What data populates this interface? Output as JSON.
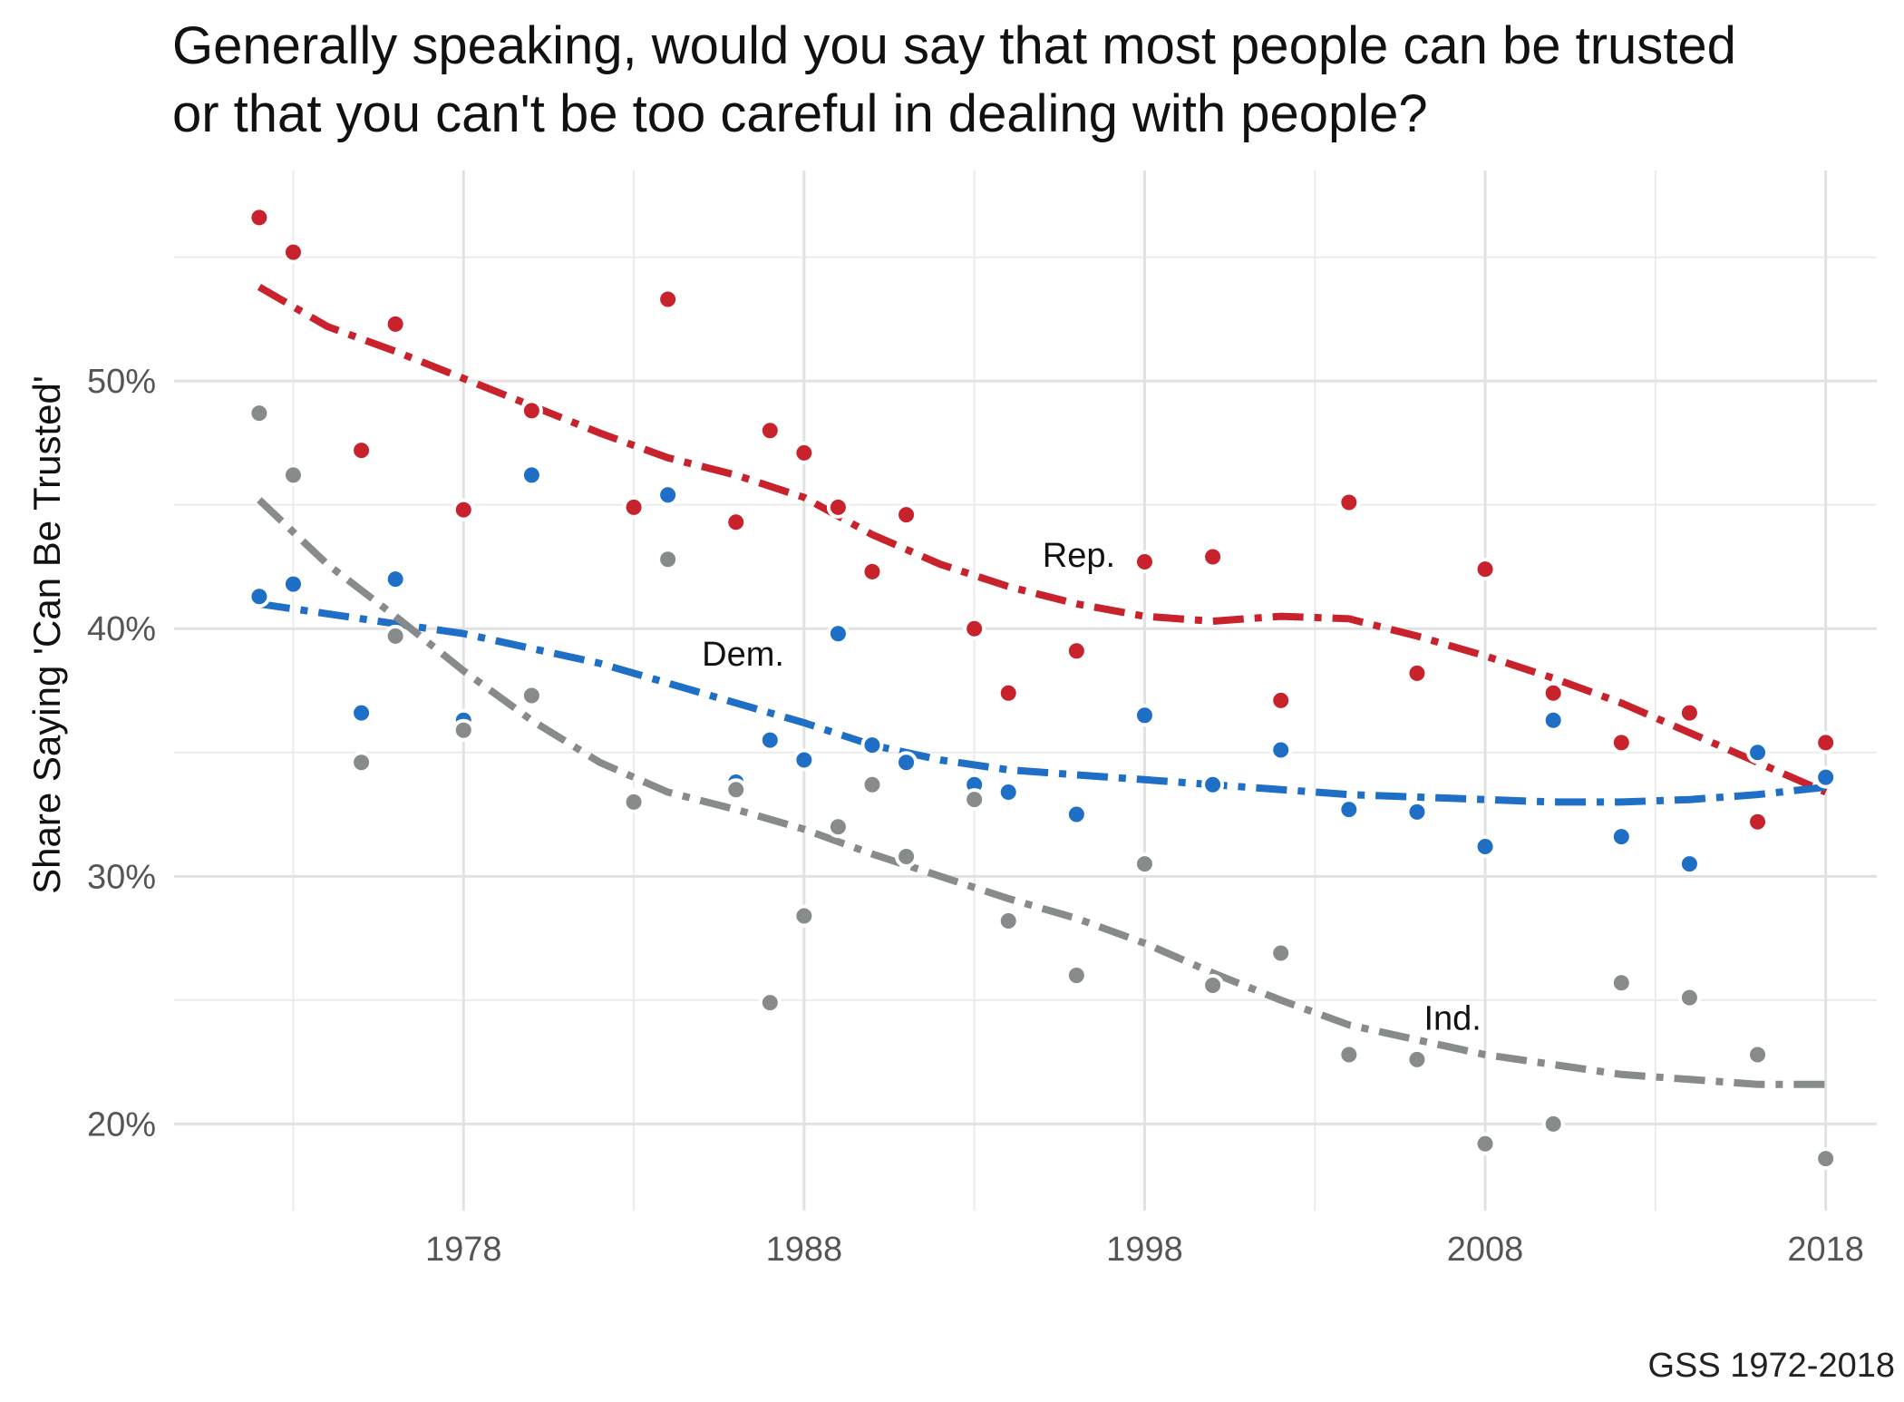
{
  "chart_data": {
    "type": "scatter",
    "title_line1": "Generally speaking, would you say that most people can be trusted",
    "title_line2": "or that you can't be too careful in dealing with people?",
    "xlabel": "",
    "ylabel": "Share Saying 'Can Be Trusted'",
    "caption": "GSS 1972-2018",
    "xlim": [
      1969.5,
      2019.5
    ],
    "ylim": [
      16.5,
      58.5
    ],
    "x_ticks": [
      1978,
      1988,
      1998,
      2008,
      2018
    ],
    "y_ticks": [
      20,
      30,
      40,
      50
    ],
    "y_tick_labels": [
      "20%",
      "30%",
      "40%",
      "50%"
    ],
    "grid": true,
    "series": [
      {
        "name": "Rep.",
        "color": "#c8232c",
        "points": [
          [
            1972,
            56.6
          ],
          [
            1973,
            55.2
          ],
          [
            1975,
            47.2
          ],
          [
            1976,
            52.3
          ],
          [
            1978,
            44.8
          ],
          [
            1980,
            48.8
          ],
          [
            1983,
            44.9
          ],
          [
            1984,
            53.3
          ],
          [
            1986,
            44.3
          ],
          [
            1987,
            48.0
          ],
          [
            1988,
            47.1
          ],
          [
            1989,
            44.9
          ],
          [
            1990,
            42.3
          ],
          [
            1991,
            44.6
          ],
          [
            1993,
            40.0
          ],
          [
            1994,
            37.4
          ],
          [
            1996,
            39.1
          ],
          [
            1998,
            42.7
          ],
          [
            2000,
            42.9
          ],
          [
            2002,
            37.1
          ],
          [
            2004,
            45.1
          ],
          [
            2006,
            38.2
          ],
          [
            2008,
            42.4
          ],
          [
            2010,
            37.4
          ],
          [
            2012,
            35.4
          ],
          [
            2014,
            36.6
          ],
          [
            2016,
            32.2
          ],
          [
            2018,
            35.4
          ]
        ],
        "trend": [
          [
            1972,
            53.8
          ],
          [
            1974,
            52.2
          ],
          [
            1976,
            51.2
          ],
          [
            1978,
            50.1
          ],
          [
            1980,
            49.0
          ],
          [
            1982,
            47.9
          ],
          [
            1984,
            46.9
          ],
          [
            1986,
            46.2
          ],
          [
            1988,
            45.3
          ],
          [
            1990,
            43.8
          ],
          [
            1992,
            42.6
          ],
          [
            1994,
            41.7
          ],
          [
            1996,
            41.0
          ],
          [
            1998,
            40.5
          ],
          [
            2000,
            40.3
          ],
          [
            2002,
            40.5
          ],
          [
            2004,
            40.4
          ],
          [
            2006,
            39.7
          ],
          [
            2008,
            38.9
          ],
          [
            2010,
            38.0
          ],
          [
            2012,
            37.0
          ],
          [
            2014,
            35.8
          ],
          [
            2016,
            34.6
          ],
          [
            2018,
            33.4
          ]
        ],
        "label_pos": [
          1995,
          42.5
        ]
      },
      {
        "name": "Dem.",
        "color": "#1f6fc6",
        "points": [
          [
            1972,
            41.3
          ],
          [
            1973,
            41.8
          ],
          [
            1975,
            36.6
          ],
          [
            1976,
            42.0
          ],
          [
            1978,
            36.3
          ],
          [
            1980,
            46.2
          ],
          [
            1983,
            33.1
          ],
          [
            1984,
            45.4
          ],
          [
            1986,
            33.8
          ],
          [
            1987,
            35.5
          ],
          [
            1988,
            34.7
          ],
          [
            1989,
            39.8
          ],
          [
            1990,
            35.3
          ],
          [
            1991,
            34.6
          ],
          [
            1993,
            33.7
          ],
          [
            1994,
            33.4
          ],
          [
            1996,
            32.5
          ],
          [
            1998,
            36.5
          ],
          [
            2000,
            33.7
          ],
          [
            2002,
            35.1
          ],
          [
            2004,
            32.7
          ],
          [
            2006,
            32.6
          ],
          [
            2008,
            31.2
          ],
          [
            2010,
            36.3
          ],
          [
            2012,
            31.6
          ],
          [
            2014,
            30.5
          ],
          [
            2016,
            35.0
          ],
          [
            2018,
            34.0
          ]
        ],
        "trend": [
          [
            1972,
            41.0
          ],
          [
            1974,
            40.6
          ],
          [
            1976,
            40.2
          ],
          [
            1978,
            39.8
          ],
          [
            1980,
            39.2
          ],
          [
            1982,
            38.6
          ],
          [
            1984,
            37.8
          ],
          [
            1986,
            37.0
          ],
          [
            1988,
            36.2
          ],
          [
            1990,
            35.3
          ],
          [
            1992,
            34.7
          ],
          [
            1994,
            34.3
          ],
          [
            1996,
            34.1
          ],
          [
            1998,
            33.9
          ],
          [
            2000,
            33.7
          ],
          [
            2002,
            33.5
          ],
          [
            2004,
            33.3
          ],
          [
            2006,
            33.2
          ],
          [
            2008,
            33.1
          ],
          [
            2010,
            33.0
          ],
          [
            2012,
            33.0
          ],
          [
            2014,
            33.1
          ],
          [
            2016,
            33.3
          ],
          [
            2018,
            33.6
          ]
        ],
        "label_pos": [
          1985,
          38.5
        ]
      },
      {
        "name": "Ind.",
        "color": "#888b8b",
        "points": [
          [
            1972,
            48.7
          ],
          [
            1973,
            46.2
          ],
          [
            1975,
            34.6
          ],
          [
            1976,
            39.7
          ],
          [
            1978,
            35.9
          ],
          [
            1980,
            37.3
          ],
          [
            1983,
            33.0
          ],
          [
            1984,
            42.8
          ],
          [
            1986,
            33.5
          ],
          [
            1987,
            24.9
          ],
          [
            1988,
            28.4
          ],
          [
            1989,
            32.0
          ],
          [
            1990,
            33.7
          ],
          [
            1991,
            30.8
          ],
          [
            1993,
            33.1
          ],
          [
            1994,
            28.2
          ],
          [
            1996,
            26.0
          ],
          [
            1998,
            30.5
          ],
          [
            2000,
            25.6
          ],
          [
            2002,
            26.9
          ],
          [
            2004,
            22.8
          ],
          [
            2006,
            22.6
          ],
          [
            2008,
            19.2
          ],
          [
            2010,
            20.0
          ],
          [
            2012,
            25.7
          ],
          [
            2014,
            25.1
          ],
          [
            2016,
            22.8
          ],
          [
            2018,
            18.6
          ]
        ],
        "trend": [
          [
            1972,
            45.2
          ],
          [
            1974,
            42.6
          ],
          [
            1976,
            40.5
          ],
          [
            1978,
            38.3
          ],
          [
            1980,
            36.3
          ],
          [
            1982,
            34.6
          ],
          [
            1984,
            33.4
          ],
          [
            1986,
            32.7
          ],
          [
            1988,
            31.9
          ],
          [
            1990,
            30.9
          ],
          [
            1992,
            30.0
          ],
          [
            1994,
            29.1
          ],
          [
            1996,
            28.3
          ],
          [
            1998,
            27.3
          ],
          [
            2000,
            26.1
          ],
          [
            2002,
            25.0
          ],
          [
            2004,
            24.0
          ],
          [
            2006,
            23.4
          ],
          [
            2008,
            22.8
          ],
          [
            2010,
            22.4
          ],
          [
            2012,
            22.0
          ],
          [
            2014,
            21.8
          ],
          [
            2016,
            21.6
          ],
          [
            2018,
            21.6
          ]
        ],
        "label_pos": [
          2006.2,
          23.8
        ]
      }
    ]
  }
}
